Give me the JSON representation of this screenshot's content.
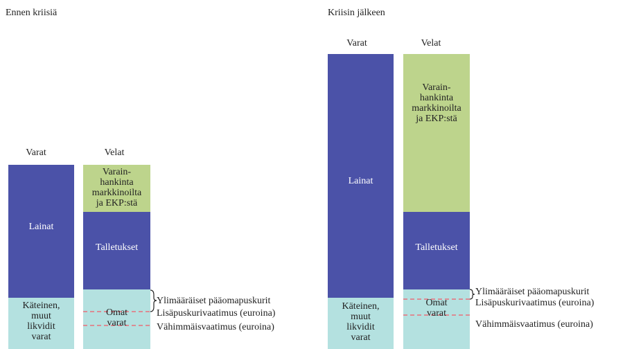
{
  "before": {
    "title": "Ennen kriisiä",
    "assets_header": "Varat",
    "liabilities_header": "Velat",
    "loans": "Lainat",
    "cash": [
      "Käteinen,",
      "muut",
      "likvidit",
      "varat"
    ],
    "funding": [
      "Varain-",
      "hankinta",
      "markkinoilta",
      "ja EKP:stä"
    ],
    "deposits": "Talletukset",
    "equity": [
      "Omat",
      "varat"
    ],
    "labels": [
      "Ylimääräiset pääomapuskurit",
      "Lisäpuskurivaatimus (euroina)",
      "Vähimmäisvaatimus (euroina)"
    ]
  },
  "after": {
    "title": "Kriisin jälkeen",
    "assets_header": "Varat",
    "liabilities_header": "Velat",
    "loans": "Lainat",
    "cash": [
      "Käteinen,",
      "muut",
      "likvidit",
      "varat"
    ],
    "funding": [
      "Varain-",
      "hankinta",
      "markkinoilta",
      "ja EKP:stä"
    ],
    "deposits": "Talletukset",
    "equity": [
      "Omat",
      "varat"
    ],
    "labels": [
      "Ylimääräiset pääomapuskurit",
      "Lisäpuskurivaatimus (euroina)",
      "Vähimmäisvaatimus (euroina)"
    ]
  }
}
